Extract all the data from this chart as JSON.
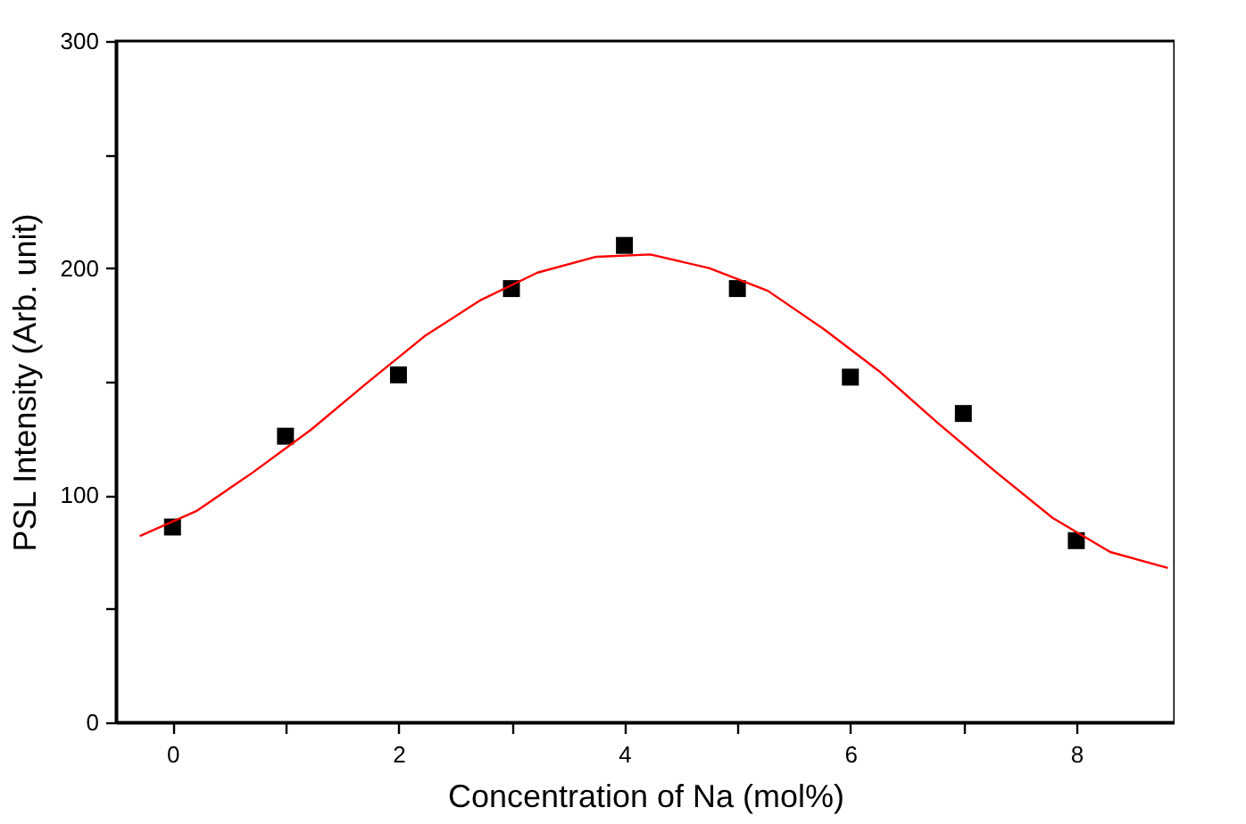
{
  "chart_data": {
    "type": "scatter",
    "xlabel": "Concentration of Na (mol%)",
    "ylabel": "PSL Intensity (Arb. unit)",
    "xlim": [
      -0.5,
      8.87
    ],
    "xticks": [
      0,
      {
        "value": 1,
        "label": null
      },
      2,
      {
        "value": 3,
        "label": null
      },
      4,
      {
        "value": 5,
        "label": null
      },
      6,
      {
        "value": 7,
        "label": null
      },
      8
    ],
    "ylim": [
      0,
      300
    ],
    "yticks": [
      0,
      {
        "value": 50,
        "label": null
      },
      100,
      {
        "value": 150,
        "label": null
      },
      200,
      {
        "value": 250,
        "label": null
      },
      300
    ],
    "grid": false,
    "series": [
      {
        "color": "#000000",
        "marker": "square",
        "x": [
          0,
          1,
          2,
          3,
          4,
          5,
          6,
          7,
          8
        ],
        "values": [
          86,
          126,
          153,
          191,
          210,
          191,
          152,
          136,
          80
        ]
      },
      {
        "type": "line",
        "color": "#ff0000",
        "marker": "none",
        "line_style": "solid",
        "x": [
          -0.29,
          0.21,
          0.71,
          1.23,
          1.71,
          2.23,
          2.73,
          3.23,
          3.75,
          4.23,
          4.75,
          5.27,
          5.77,
          6.27,
          6.77,
          7.27,
          7.79,
          8.3,
          8.81
        ],
        "values": [
          82,
          93,
          110,
          129,
          149,
          170,
          186,
          198,
          205,
          206,
          200,
          190,
          173,
          154,
          132,
          111,
          90,
          75,
          68
        ]
      }
    ]
  }
}
